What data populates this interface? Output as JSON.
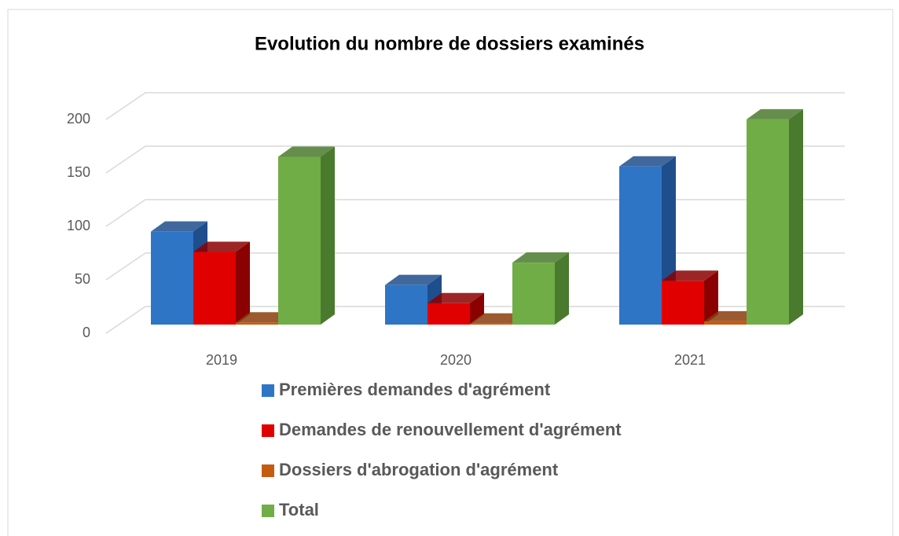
{
  "chart_data": {
    "type": "bar3d",
    "title": "Evolution du nombre de dossiers examinés",
    "categories": [
      "2019",
      "2020",
      "2021"
    ],
    "series": [
      {
        "name": "Premières demandes d'agrément",
        "color": "#2e75c6",
        "side": "#1f4e8c",
        "values": [
          87,
          37,
          148
        ]
      },
      {
        "name": "Demandes de renouvellement d'agrément",
        "color": "#e00000",
        "side": "#8b0000",
        "values": [
          68,
          20,
          41
        ]
      },
      {
        "name": "Dossiers d'abrogation d'agrément",
        "color": "#c55a11",
        "side": "#8a3d0b",
        "values": [
          2,
          1,
          3
        ]
      },
      {
        "name": "Total",
        "color": "#70ad47",
        "side": "#4a7a2d",
        "values": [
          157,
          58,
          192
        ]
      }
    ],
    "ylim": [
      0,
      200
    ],
    "yticks": [
      0,
      50,
      100,
      150,
      200
    ],
    "grid": true
  }
}
